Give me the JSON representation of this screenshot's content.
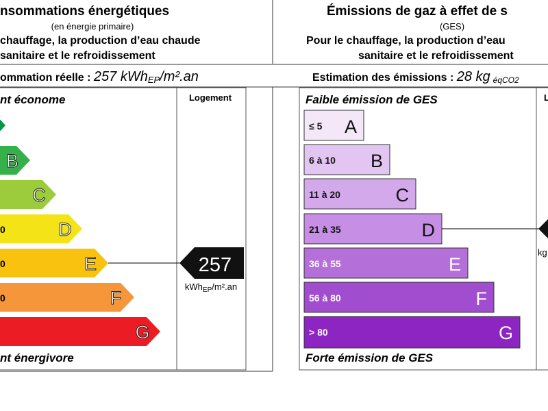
{
  "energy": {
    "title": "nsommations énergétiques",
    "subtitle": "(en énergie primaire)",
    "description": [
      "chauffage, la production d’eau chaude",
      "sanitaire et le refroidissement"
    ],
    "consumption": {
      "label": "ommation réelle : ",
      "value": "257 kWh",
      "sub": "EP",
      "unit": "/m².an"
    },
    "top_label": "nt économe",
    "bottom_label": "nt énergivore",
    "column_header": "Logement",
    "classes": [
      {
        "letter": "B"
      },
      {
        "letter": "C"
      },
      {
        "range": "0",
        "letter": "D"
      },
      {
        "range": "0",
        "letter": "E"
      },
      {
        "range": "0",
        "letter": "F"
      },
      {
        "letter": "G"
      }
    ],
    "marker": {
      "value": "257",
      "unit": "kWh",
      "unit_sub": "EP",
      "unit_rest": "/m².an"
    }
  },
  "ges": {
    "title": "Émissions de gaz à effet de s",
    "subtitle": "(GES)",
    "description": [
      "Pour le chauffage, la production d’eau",
      "sanitaire et le refroidissement"
    ],
    "estimate": {
      "label": "Estimation des émissions : ",
      "value": "28 kg",
      "sub": "éqCO2"
    },
    "top_label": "Faible émission de GES",
    "bottom_label": "Forte émission de GES",
    "column_header": "L",
    "classes": [
      {
        "range": "≤ 5",
        "letter": "A"
      },
      {
        "range": "6 à 10",
        "letter": "B"
      },
      {
        "range": "11 à 20",
        "letter": "C"
      },
      {
        "range": "21 à 35",
        "letter": "D"
      },
      {
        "range": "36 à 55",
        "letter": "E"
      },
      {
        "range": "56 à 80",
        "letter": "F"
      },
      {
        "range": "> 80",
        "letter": "G"
      }
    ],
    "marker_unit": "kg"
  }
}
